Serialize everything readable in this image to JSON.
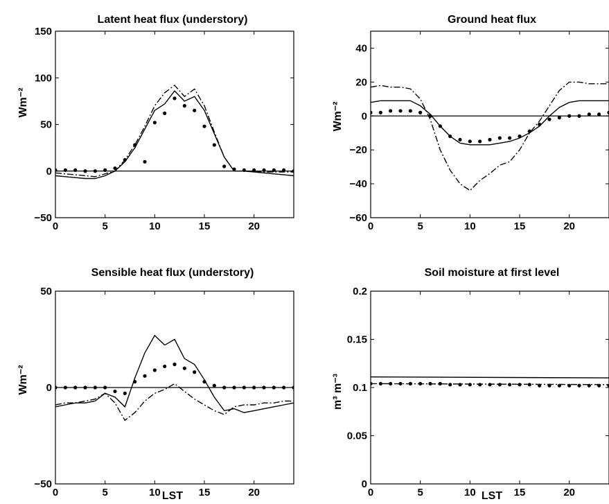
{
  "chart_data": [
    {
      "type": "line",
      "title": "Latent heat flux (understory)",
      "xlabel": "",
      "ylabel": "Wm⁻²",
      "xlim": [
        0,
        24
      ],
      "ylim": [
        -50,
        150
      ],
      "xticks": [
        "0",
        "5",
        "10",
        "15",
        "20"
      ],
      "yticks": [
        "-50",
        "0",
        "50",
        "100",
        "150"
      ],
      "zero_line": true,
      "series": [
        {
          "style": "solid",
          "x": [
            0,
            1,
            2,
            3,
            4,
            5,
            6,
            7,
            8,
            9,
            10,
            11,
            12,
            13,
            14,
            15,
            16,
            17,
            18,
            19,
            20,
            21,
            22,
            23,
            24
          ],
          "y": [
            -5,
            -6,
            -7,
            -8,
            -8,
            -5,
            0,
            10,
            25,
            45,
            65,
            72,
            86,
            75,
            80,
            65,
            40,
            15,
            0,
            0,
            -1,
            -2,
            -3,
            -4,
            -5
          ]
        },
        {
          "style": "dashdot",
          "x": [
            0,
            1,
            2,
            3,
            4,
            5,
            6,
            7,
            8,
            9,
            10,
            11,
            12,
            13,
            14,
            15,
            16,
            17,
            18,
            19,
            20,
            21,
            22,
            23,
            24
          ],
          "y": [
            -2,
            -3,
            -4,
            -5,
            -6,
            -3,
            0,
            12,
            28,
            48,
            70,
            84,
            92,
            80,
            88,
            70,
            42,
            15,
            0,
            0,
            0,
            -1,
            -1,
            -1,
            -1
          ]
        },
        {
          "style": "dotted",
          "x": [
            0,
            1,
            2,
            3,
            4,
            5,
            6,
            7,
            8,
            9,
            10,
            11,
            12,
            13,
            14,
            15,
            16,
            17,
            18,
            19,
            20,
            21,
            22,
            23,
            24
          ],
          "y": [
            1,
            1,
            1,
            0,
            0,
            1,
            3,
            12,
            28,
            10,
            52,
            62,
            78,
            70,
            65,
            48,
            28,
            5,
            2,
            1,
            1,
            1,
            1,
            1,
            0
          ]
        }
      ]
    },
    {
      "type": "line",
      "title": "Ground heat flux",
      "xlabel": "",
      "ylabel": "Wm⁻²",
      "xlim": [
        0,
        24
      ],
      "ylim": [
        -60,
        50
      ],
      "xticks": [
        "0",
        "5",
        "10",
        "15",
        "20"
      ],
      "yticks": [
        "-60",
        "-40",
        "-20",
        "0",
        "20",
        "40"
      ],
      "zero_line": true,
      "series": [
        {
          "style": "solid",
          "x": [
            0,
            1,
            2,
            3,
            4,
            5,
            6,
            7,
            8,
            9,
            10,
            11,
            12,
            13,
            14,
            15,
            16,
            17,
            18,
            19,
            20,
            21,
            22,
            23,
            24
          ],
          "y": [
            8,
            9,
            9,
            9,
            9,
            6,
            1,
            -6,
            -12,
            -16,
            -17,
            -17,
            -17,
            -16,
            -15,
            -13,
            -10,
            -6,
            0,
            5,
            8,
            9,
            9,
            9,
            9
          ]
        },
        {
          "style": "dashdot",
          "x": [
            0,
            1,
            2,
            3,
            4,
            5,
            6,
            7,
            8,
            9,
            10,
            11,
            12,
            13,
            14,
            15,
            16,
            17,
            18,
            19,
            20,
            21,
            22,
            23,
            24
          ],
          "y": [
            17,
            18,
            17,
            17,
            16,
            10,
            -2,
            -20,
            -32,
            -40,
            -44,
            -38,
            -34,
            -29,
            -27,
            -20,
            -10,
            -3,
            6,
            15,
            20,
            20,
            19,
            19,
            19
          ]
        },
        {
          "style": "dotted",
          "x": [
            0,
            1,
            2,
            3,
            4,
            5,
            6,
            7,
            8,
            9,
            10,
            11,
            12,
            13,
            14,
            15,
            16,
            17,
            18,
            19,
            20,
            21,
            22,
            23,
            24
          ],
          "y": [
            2,
            2,
            3,
            3,
            3,
            2,
            0,
            -6,
            -12,
            -14,
            -15,
            -15,
            -14,
            -13,
            -13,
            -12,
            -9,
            -5,
            -2,
            -1,
            0,
            0,
            1,
            1,
            2
          ]
        }
      ]
    },
    {
      "type": "line",
      "title": "Sensible heat flux (understory)",
      "xlabel": "LST",
      "ylabel": "Wm⁻²",
      "xlim": [
        0,
        24
      ],
      "ylim": [
        -50,
        50
      ],
      "xticks": [
        "0",
        "5",
        "10",
        "15",
        "20"
      ],
      "yticks": [
        "-50",
        "0",
        "50"
      ],
      "zero_line": true,
      "series": [
        {
          "style": "solid",
          "x": [
            0,
            1,
            2,
            3,
            4,
            5,
            6,
            7,
            8,
            9,
            10,
            11,
            12,
            13,
            14,
            15,
            16,
            17,
            18,
            19,
            20,
            21,
            22,
            23,
            24
          ],
          "y": [
            -10,
            -9,
            -8,
            -8,
            -7,
            -3,
            -5,
            -10,
            5,
            18,
            27,
            22,
            25,
            15,
            12,
            4,
            -5,
            -12,
            -11,
            -13,
            -12,
            -11,
            -10,
            -9,
            -8
          ]
        },
        {
          "style": "dashdot",
          "x": [
            0,
            1,
            2,
            3,
            4,
            5,
            6,
            7,
            8,
            9,
            10,
            11,
            12,
            13,
            14,
            15,
            16,
            17,
            18,
            19,
            20,
            21,
            22,
            23,
            24
          ],
          "y": [
            -9,
            -8,
            -8,
            -7,
            -6,
            -3,
            -8,
            -17,
            -13,
            -7,
            -3,
            -1,
            2,
            -2,
            -6,
            -9,
            -12,
            -14,
            -10,
            -9,
            -9,
            -8,
            -8,
            -7,
            -7
          ]
        },
        {
          "style": "dotted",
          "x": [
            0,
            1,
            2,
            3,
            4,
            5,
            6,
            7,
            8,
            9,
            10,
            11,
            12,
            13,
            14,
            15,
            16,
            17,
            18,
            19,
            20,
            21,
            22,
            23,
            24
          ],
          "y": [
            0,
            0,
            0,
            0,
            0,
            0,
            -2,
            -3,
            3,
            6,
            9,
            11,
            12,
            10,
            8,
            3,
            1,
            0,
            0,
            0,
            0,
            0,
            0,
            0,
            0
          ]
        }
      ]
    },
    {
      "type": "line",
      "title": "Soil moisture at first level",
      "xlabel": "LST",
      "ylabel": "m³ m⁻³",
      "xlim": [
        0,
        24
      ],
      "ylim": [
        0,
        0.2
      ],
      "xticks": [
        "0",
        "5",
        "10",
        "15",
        "20"
      ],
      "yticks": [
        "0",
        "0.05",
        "0.1",
        "0.15",
        "0.2"
      ],
      "zero_line": false,
      "series": [
        {
          "style": "solid",
          "x": [
            0,
            24
          ],
          "y": [
            0.111,
            0.11
          ]
        },
        {
          "style": "dashdot",
          "x": [
            0,
            24
          ],
          "y": [
            0.104,
            0.103
          ]
        },
        {
          "style": "dotted",
          "x": [
            0,
            1,
            2,
            3,
            4,
            5,
            6,
            7,
            8,
            9,
            10,
            11,
            12,
            13,
            14,
            15,
            16,
            17,
            18,
            19,
            20,
            21,
            22,
            23,
            24
          ],
          "y": [
            0.104,
            0.104,
            0.104,
            0.104,
            0.104,
            0.104,
            0.104,
            0.104,
            0.103,
            0.103,
            0.103,
            0.103,
            0.103,
            0.103,
            0.103,
            0.103,
            0.103,
            0.102,
            0.102,
            0.102,
            0.102,
            0.102,
            0.102,
            0.102,
            0.102
          ]
        }
      ]
    }
  ]
}
